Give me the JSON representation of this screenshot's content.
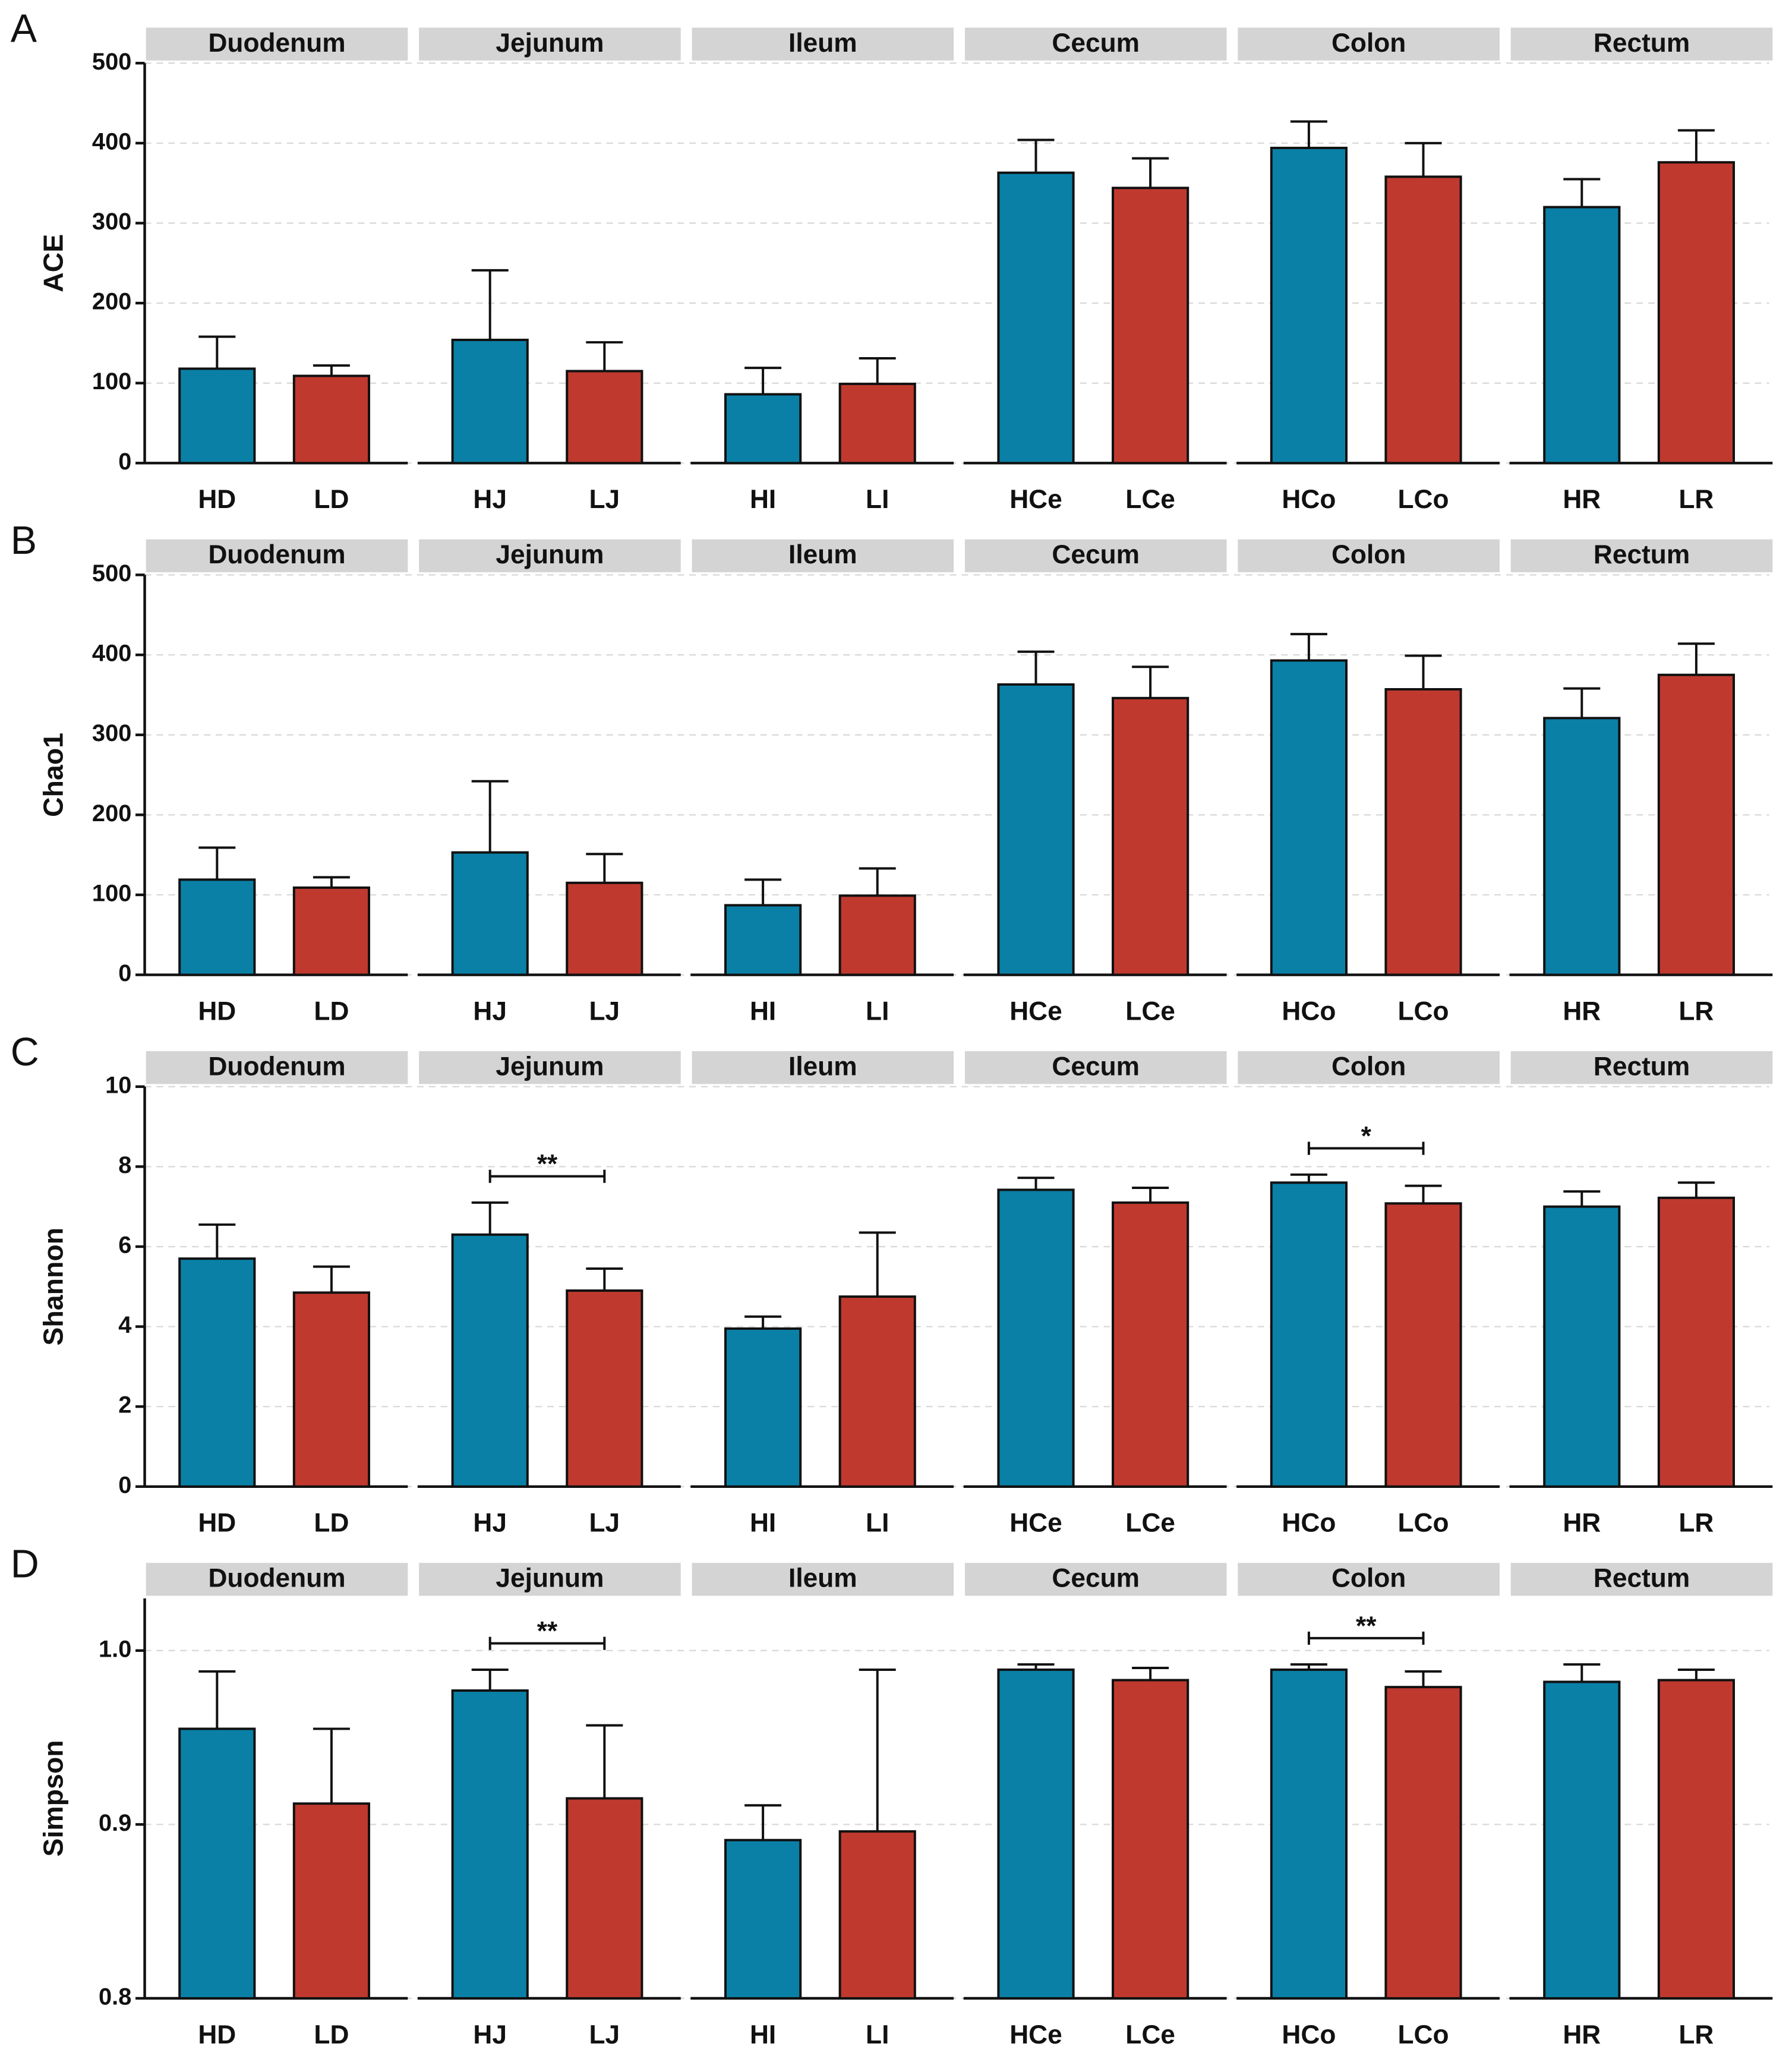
{
  "chart_data": [
    {
      "type": "bar",
      "panel_label": "A",
      "ylabel": "ACE",
      "ylim": [
        0,
        500
      ],
      "yticks": [
        0,
        100,
        200,
        300,
        400,
        500
      ],
      "grid": true,
      "facets": [
        "Duodenum",
        "Jejunum",
        "Ileum",
        "Cecum",
        "Colon",
        "Rectum"
      ],
      "categories": [
        "HD",
        "LD",
        "HJ",
        "LJ",
        "HI",
        "LI",
        "HCe",
        "LCe",
        "HCo",
        "LCo",
        "HR",
        "LR"
      ],
      "values": [
        118,
        109,
        154,
        115,
        86,
        99,
        363,
        344,
        394,
        358,
        320,
        376
      ],
      "errors": [
        40,
        13,
        87,
        36,
        33,
        32,
        41,
        37,
        33,
        42,
        35,
        40
      ],
      "colors": [
        "#0a80a6",
        "#c0392f",
        "#0a80a6",
        "#c0392f",
        "#0a80a6",
        "#c0392f",
        "#0a80a6",
        "#c0392f",
        "#0a80a6",
        "#c0392f",
        "#0a80a6",
        "#c0392f"
      ],
      "annotations": []
    },
    {
      "type": "bar",
      "panel_label": "B",
      "ylabel": "Chao1",
      "ylim": [
        0,
        500
      ],
      "yticks": [
        0,
        100,
        200,
        300,
        400,
        500
      ],
      "grid": true,
      "facets": [
        "Duodenum",
        "Jejunum",
        "Ileum",
        "Cecum",
        "Colon",
        "Rectum"
      ],
      "categories": [
        "HD",
        "LD",
        "HJ",
        "LJ",
        "HI",
        "LI",
        "HCe",
        "LCe",
        "HCo",
        "LCo",
        "HR",
        "LR"
      ],
      "values": [
        119,
        109,
        153,
        115,
        87,
        99,
        363,
        346,
        393,
        357,
        321,
        375
      ],
      "errors": [
        40,
        13,
        89,
        36,
        32,
        34,
        41,
        39,
        33,
        42,
        37,
        39
      ],
      "colors": [
        "#0a80a6",
        "#c0392f",
        "#0a80a6",
        "#c0392f",
        "#0a80a6",
        "#c0392f",
        "#0a80a6",
        "#c0392f",
        "#0a80a6",
        "#c0392f",
        "#0a80a6",
        "#c0392f"
      ],
      "annotations": []
    },
    {
      "type": "bar",
      "panel_label": "C",
      "ylabel": "Shannon",
      "ylim": [
        0,
        10
      ],
      "yticks": [
        0,
        2,
        4,
        6,
        8,
        10
      ],
      "grid": true,
      "facets": [
        "Duodenum",
        "Jejunum",
        "Ileum",
        "Cecum",
        "Colon",
        "Rectum"
      ],
      "categories": [
        "HD",
        "LD",
        "HJ",
        "LJ",
        "HI",
        "LI",
        "HCe",
        "LCe",
        "HCo",
        "LCo",
        "HR",
        "LR"
      ],
      "values": [
        5.7,
        4.85,
        6.3,
        4.9,
        3.95,
        4.75,
        7.42,
        7.1,
        7.6,
        7.08,
        7.0,
        7.22
      ],
      "errors": [
        0.85,
        0.65,
        0.8,
        0.55,
        0.3,
        1.6,
        0.3,
        0.37,
        0.2,
        0.44,
        0.38,
        0.38
      ],
      "colors": [
        "#0a80a6",
        "#c0392f",
        "#0a80a6",
        "#c0392f",
        "#0a80a6",
        "#c0392f",
        "#0a80a6",
        "#c0392f",
        "#0a80a6",
        "#c0392f",
        "#0a80a6",
        "#c0392f"
      ],
      "annotations": [
        {
          "text": "**",
          "pair": [
            "HJ",
            "LJ"
          ]
        },
        {
          "text": "*",
          "pair": [
            "HCo",
            "LCo"
          ]
        }
      ]
    },
    {
      "type": "bar",
      "panel_label": "D",
      "ylabel": "Simpson",
      "ylim": [
        0.8,
        1.03
      ],
      "yticks": [
        0.8,
        0.9,
        {
          "value": 1,
          "label": "1.0"
        }
      ],
      "grid": true,
      "facets": [
        "Duodenum",
        "Jejunum",
        "Ileum",
        "Cecum",
        "Colon",
        "Rectum"
      ],
      "categories": [
        "HD",
        "LD",
        "HJ",
        "LJ",
        "HI",
        "LI",
        "HCe",
        "LCe",
        "HCo",
        "LCo",
        "HR",
        "LR"
      ],
      "values": [
        0.955,
        0.912,
        0.977,
        0.915,
        0.891,
        0.896,
        0.989,
        0.983,
        0.989,
        0.979,
        0.982,
        0.983
      ],
      "errors": [
        0.033,
        0.043,
        0.012,
        0.042,
        0.02,
        0.093,
        0.003,
        0.007,
        0.003,
        0.009,
        0.01,
        0.006
      ],
      "colors": [
        "#0a80a6",
        "#c0392f",
        "#0a80a6",
        "#c0392f",
        "#0a80a6",
        "#c0392f",
        "#0a80a6",
        "#c0392f",
        "#0a80a6",
        "#c0392f",
        "#0a80a6",
        "#c0392f"
      ],
      "annotations": [
        {
          "text": "**",
          "pair": [
            "HJ",
            "LJ"
          ]
        },
        {
          "text": "**",
          "pair": [
            "HCo",
            "LCo"
          ]
        }
      ]
    }
  ]
}
